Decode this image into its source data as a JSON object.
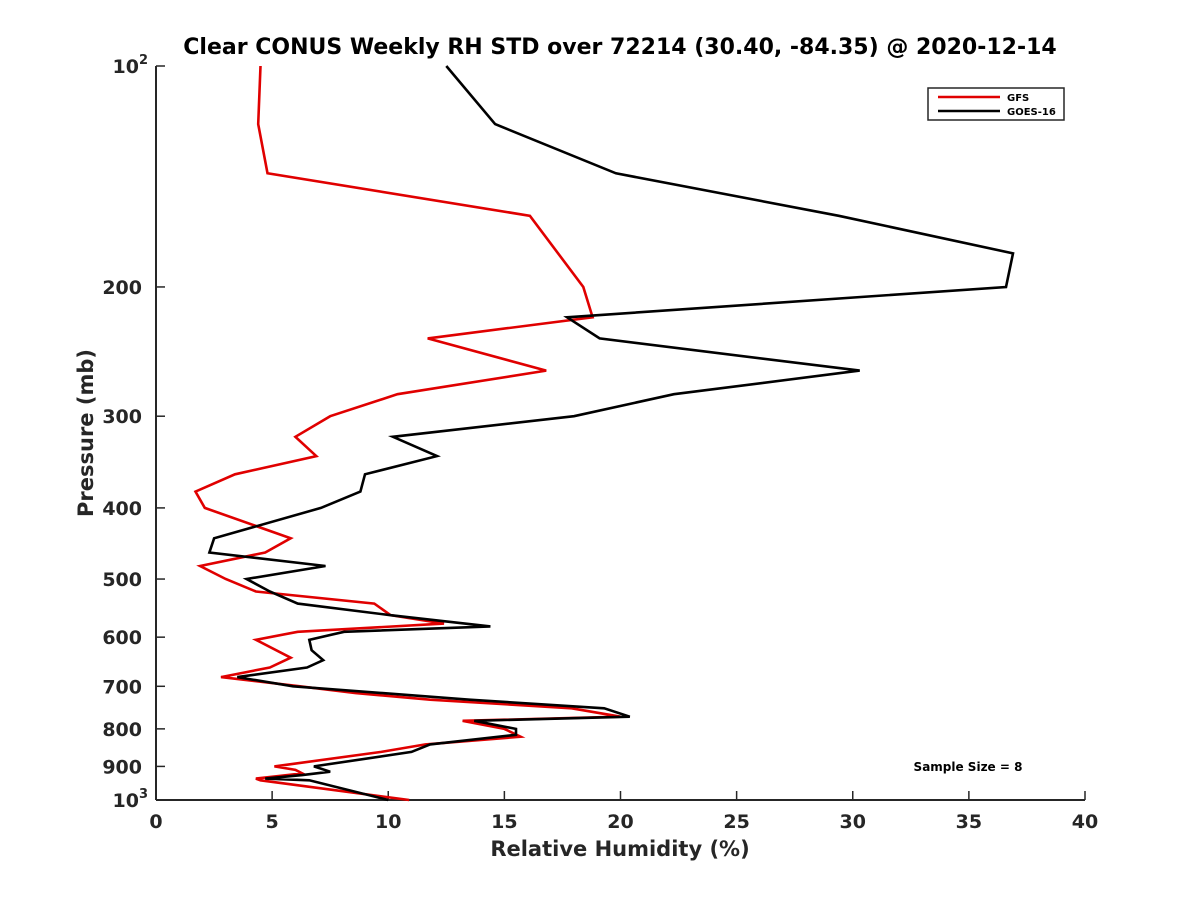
{
  "chart_data": {
    "type": "line",
    "title": "Clear CONUS Weekly RH STD over 72214 (30.40, -84.35) @ 2020-12-14",
    "xlabel": "Relative Humidity (%)",
    "ylabel": "Pressure (mb)",
    "xlim": [
      0,
      40
    ],
    "ylim": [
      100,
      1000
    ],
    "yscale": "log",
    "yreversed": true,
    "grid": false,
    "legend_position": "top-right",
    "xticks": [
      0,
      5,
      10,
      15,
      20,
      25,
      30,
      35,
      40
    ],
    "xtick_labels": [
      "0",
      "5",
      "10",
      "15",
      "20",
      "25",
      "30",
      "35",
      "40"
    ],
    "yticks": [
      100,
      200,
      300,
      400,
      500,
      600,
      700,
      800,
      900,
      1000
    ],
    "ytick_labels": [
      {
        "base": "10",
        "exp": "2"
      },
      {
        "base": "200"
      },
      {
        "base": "300"
      },
      {
        "base": "400"
      },
      {
        "base": "500"
      },
      {
        "base": "600"
      },
      {
        "base": "700"
      },
      {
        "base": "800"
      },
      {
        "base": "900"
      },
      {
        "base": "10",
        "exp": "3"
      }
    ],
    "annotation": "Sample Size = 8",
    "series": [
      {
        "name": "GFS",
        "color": "#e00000",
        "points": [
          [
            4.5,
            100
          ],
          [
            4.4,
            120
          ],
          [
            4.8,
            140
          ],
          [
            16.1,
            160
          ],
          [
            18.4,
            200
          ],
          [
            18.8,
            220
          ],
          [
            11.7,
            235
          ],
          [
            16.8,
            260
          ],
          [
            10.4,
            280
          ],
          [
            7.5,
            300
          ],
          [
            6.0,
            320
          ],
          [
            6.9,
            340
          ],
          [
            3.4,
            360
          ],
          [
            1.7,
            380
          ],
          [
            2.1,
            400
          ],
          [
            5.8,
            440
          ],
          [
            4.7,
            460
          ],
          [
            1.9,
            480
          ],
          [
            3.0,
            500
          ],
          [
            4.3,
            520
          ],
          [
            9.4,
            540
          ],
          [
            10.1,
            560
          ],
          [
            12.4,
            575
          ],
          [
            6.1,
            590
          ],
          [
            4.3,
            605
          ],
          [
            5.8,
            640
          ],
          [
            4.9,
            660
          ],
          [
            2.8,
            680
          ],
          [
            6.2,
            700
          ],
          [
            8.6,
            715
          ],
          [
            11.8,
            730
          ],
          [
            17.9,
            750
          ],
          [
            20.0,
            770
          ],
          [
            13.2,
            780
          ],
          [
            15.0,
            800
          ],
          [
            15.7,
            820
          ],
          [
            11.6,
            840
          ],
          [
            9.7,
            860
          ],
          [
            5.1,
            900
          ],
          [
            6.0,
            910
          ],
          [
            6.3,
            920
          ],
          [
            4.3,
            935
          ],
          [
            4.5,
            940
          ],
          [
            10.9,
            1000
          ]
        ]
      },
      {
        "name": "GOES-16",
        "color": "#000000",
        "points": [
          [
            12.5,
            100
          ],
          [
            14.6,
            120
          ],
          [
            19.8,
            140
          ],
          [
            29.4,
            160
          ],
          [
            36.9,
            180
          ],
          [
            36.6,
            200
          ],
          [
            17.7,
            220
          ],
          [
            19.1,
            235
          ],
          [
            30.3,
            260
          ],
          [
            22.3,
            280
          ],
          [
            18.0,
            300
          ],
          [
            10.2,
            320
          ],
          [
            12.1,
            340
          ],
          [
            9.0,
            360
          ],
          [
            8.8,
            380
          ],
          [
            7.1,
            400
          ],
          [
            2.5,
            440
          ],
          [
            2.3,
            460
          ],
          [
            7.3,
            480
          ],
          [
            3.9,
            500
          ],
          [
            4.9,
            520
          ],
          [
            6.1,
            540
          ],
          [
            10.1,
            560
          ],
          [
            14.4,
            580
          ],
          [
            8.1,
            590
          ],
          [
            6.6,
            605
          ],
          [
            6.7,
            625
          ],
          [
            7.2,
            645
          ],
          [
            6.5,
            660
          ],
          [
            3.5,
            680
          ],
          [
            5.9,
            700
          ],
          [
            13.5,
            730
          ],
          [
            19.3,
            750
          ],
          [
            20.4,
            770
          ],
          [
            13.7,
            780
          ],
          [
            15.5,
            800
          ],
          [
            15.5,
            815
          ],
          [
            11.8,
            840
          ],
          [
            11.0,
            860
          ],
          [
            6.8,
            900
          ],
          [
            7.5,
            915
          ],
          [
            6.3,
            925
          ],
          [
            4.7,
            935
          ],
          [
            6.6,
            940
          ],
          [
            10.0,
            1000
          ]
        ]
      }
    ]
  }
}
